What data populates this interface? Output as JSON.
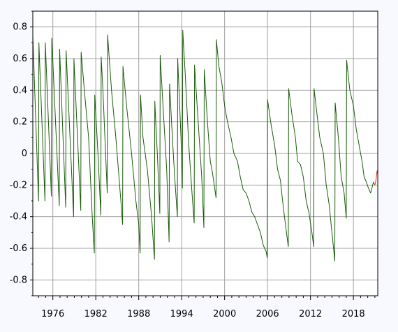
{
  "chart_data": {
    "type": "line",
    "title": "",
    "xlabel": "",
    "ylabel": "",
    "xlim": [
      1973.2,
      2021.4
    ],
    "ylim": [
      -0.9,
      0.9
    ],
    "x_ticks": [
      1976,
      1982,
      1988,
      1994,
      2000,
      2006,
      2012,
      2018
    ],
    "x_tick_labels": [
      "1976",
      "1982",
      "1988",
      "1994",
      "2000",
      "2006",
      "2012",
      "2018"
    ],
    "y_ticks": [
      0.8,
      0.6,
      0.4,
      0.2,
      0,
      -0.2,
      -0.4,
      -0.6,
      -0.8
    ],
    "y_tick_labels": [
      "0.8",
      "0.6",
      "0.4",
      "0.2",
      "0",
      "-0.2",
      "-0.4",
      "-0.6",
      "-0.8"
    ],
    "grid": true,
    "series": [
      {
        "color": "#1a5c0a",
        "points": [
          [
            1973.2,
            0.75
          ],
          [
            1974.0,
            -0.3
          ],
          [
            1974.05,
            0.7
          ],
          [
            1974.9,
            -0.3
          ],
          [
            1974.95,
            0.7
          ],
          [
            1975.8,
            -0.27
          ],
          [
            1975.85,
            0.73
          ],
          [
            1976.9,
            -0.33
          ],
          [
            1976.95,
            0.66
          ],
          [
            1977.8,
            -0.34
          ],
          [
            1977.85,
            0.65
          ],
          [
            1978.9,
            -0.4
          ],
          [
            1978.95,
            0.6
          ],
          [
            1979.9,
            -0.36
          ],
          [
            1979.95,
            0.64
          ],
          [
            1980.5,
            0.35
          ],
          [
            1981.0,
            0.1
          ],
          [
            1981.5,
            -0.4
          ],
          [
            1981.8,
            -0.63
          ],
          [
            1981.85,
            0.37
          ],
          [
            1982.3,
            0.0
          ],
          [
            1982.7,
            -0.39
          ],
          [
            1982.75,
            0.61
          ],
          [
            1983.0,
            0.4
          ],
          [
            1983.6,
            -0.25
          ],
          [
            1983.65,
            0.75
          ],
          [
            1984.2,
            0.4
          ],
          [
            1984.8,
            0.1
          ],
          [
            1985.5,
            -0.3
          ],
          [
            1985.75,
            -0.45
          ],
          [
            1985.8,
            0.55
          ],
          [
            1986.3,
            0.3
          ],
          [
            1987.0,
            0.0
          ],
          [
            1987.6,
            -0.3
          ],
          [
            1988.0,
            -0.45
          ],
          [
            1988.2,
            -0.63
          ],
          [
            1988.25,
            0.37
          ],
          [
            1988.6,
            0.1
          ],
          [
            1989.2,
            -0.1
          ],
          [
            1989.8,
            -0.4
          ],
          [
            1990.2,
            -0.67
          ],
          [
            1990.25,
            0.33
          ],
          [
            1990.6,
            0.0
          ],
          [
            1990.95,
            -0.38
          ],
          [
            1991.0,
            0.62
          ],
          [
            1991.4,
            0.3
          ],
          [
            1991.9,
            -0.1
          ],
          [
            1992.25,
            -0.56
          ],
          [
            1992.3,
            0.44
          ],
          [
            1992.7,
            0.1
          ],
          [
            1993.0,
            -0.13
          ],
          [
            1993.4,
            -0.4
          ],
          [
            1993.45,
            0.6
          ],
          [
            1993.9,
            0.1
          ],
          [
            1994.1,
            -0.22
          ],
          [
            1994.15,
            0.78
          ],
          [
            1994.5,
            0.5
          ],
          [
            1995.0,
            0.05
          ],
          [
            1995.4,
            -0.22
          ],
          [
            1995.75,
            -0.44
          ],
          [
            1995.8,
            0.56
          ],
          [
            1996.3,
            0.2
          ],
          [
            1996.8,
            -0.15
          ],
          [
            1997.1,
            -0.47
          ],
          [
            1997.15,
            0.53
          ],
          [
            1997.6,
            0.2
          ],
          [
            1998.0,
            -0.05
          ],
          [
            1998.3,
            -0.12
          ],
          [
            1998.8,
            -0.28
          ],
          [
            1998.85,
            0.72
          ],
          [
            1999.2,
            0.55
          ],
          [
            1999.6,
            0.45
          ],
          [
            2000.0,
            0.3
          ],
          [
            2000.4,
            0.2
          ],
          [
            2000.9,
            0.1
          ],
          [
            2001.3,
            0.0
          ],
          [
            2001.8,
            -0.05
          ],
          [
            2002.2,
            -0.15
          ],
          [
            2002.6,
            -0.23
          ],
          [
            2003.0,
            -0.25
          ],
          [
            2003.4,
            -0.3
          ],
          [
            2003.8,
            -0.37
          ],
          [
            2004.2,
            -0.4
          ],
          [
            2004.6,
            -0.45
          ],
          [
            2005.0,
            -0.5
          ],
          [
            2005.4,
            -0.58
          ],
          [
            2005.8,
            -0.62
          ],
          [
            2005.95,
            -0.66
          ],
          [
            2006.0,
            0.34
          ],
          [
            2006.5,
            0.18
          ],
          [
            2007.0,
            0.05
          ],
          [
            2007.4,
            -0.1
          ],
          [
            2007.8,
            -0.17
          ],
          [
            2008.1,
            -0.3
          ],
          [
            2008.5,
            -0.45
          ],
          [
            2008.9,
            -0.59
          ],
          [
            2008.95,
            0.41
          ],
          [
            2009.4,
            0.25
          ],
          [
            2009.9,
            0.1
          ],
          [
            2010.2,
            -0.05
          ],
          [
            2010.6,
            -0.07
          ],
          [
            2011.0,
            -0.15
          ],
          [
            2011.4,
            -0.3
          ],
          [
            2011.8,
            -0.38
          ],
          [
            2012.2,
            -0.5
          ],
          [
            2012.45,
            -0.59
          ],
          [
            2012.5,
            0.41
          ],
          [
            2012.9,
            0.25
          ],
          [
            2013.3,
            0.1
          ],
          [
            2013.8,
            0.0
          ],
          [
            2014.2,
            -0.2
          ],
          [
            2014.6,
            -0.32
          ],
          [
            2015.0,
            -0.5
          ],
          [
            2015.4,
            -0.68
          ],
          [
            2015.45,
            0.32
          ],
          [
            2015.9,
            0.1
          ],
          [
            2016.3,
            -0.15
          ],
          [
            2016.7,
            -0.25
          ],
          [
            2017.0,
            -0.41
          ],
          [
            2017.05,
            0.59
          ],
          [
            2017.5,
            0.4
          ],
          [
            2018.0,
            0.3
          ],
          [
            2018.4,
            0.15
          ],
          [
            2018.8,
            0.05
          ],
          [
            2019.2,
            -0.05
          ],
          [
            2019.5,
            -0.15
          ],
          [
            2019.8,
            -0.18
          ],
          [
            2020.1,
            -0.22
          ],
          [
            2020.4,
            -0.25
          ],
          [
            2020.8,
            -0.18
          ]
        ]
      },
      {
        "color": "#d43a1a",
        "points": [
          [
            2020.8,
            -0.18
          ],
          [
            2021.0,
            -0.2
          ],
          [
            2021.15,
            -0.17
          ],
          [
            2021.3,
            -0.11
          ],
          [
            2021.4,
            -0.13
          ]
        ]
      }
    ]
  }
}
